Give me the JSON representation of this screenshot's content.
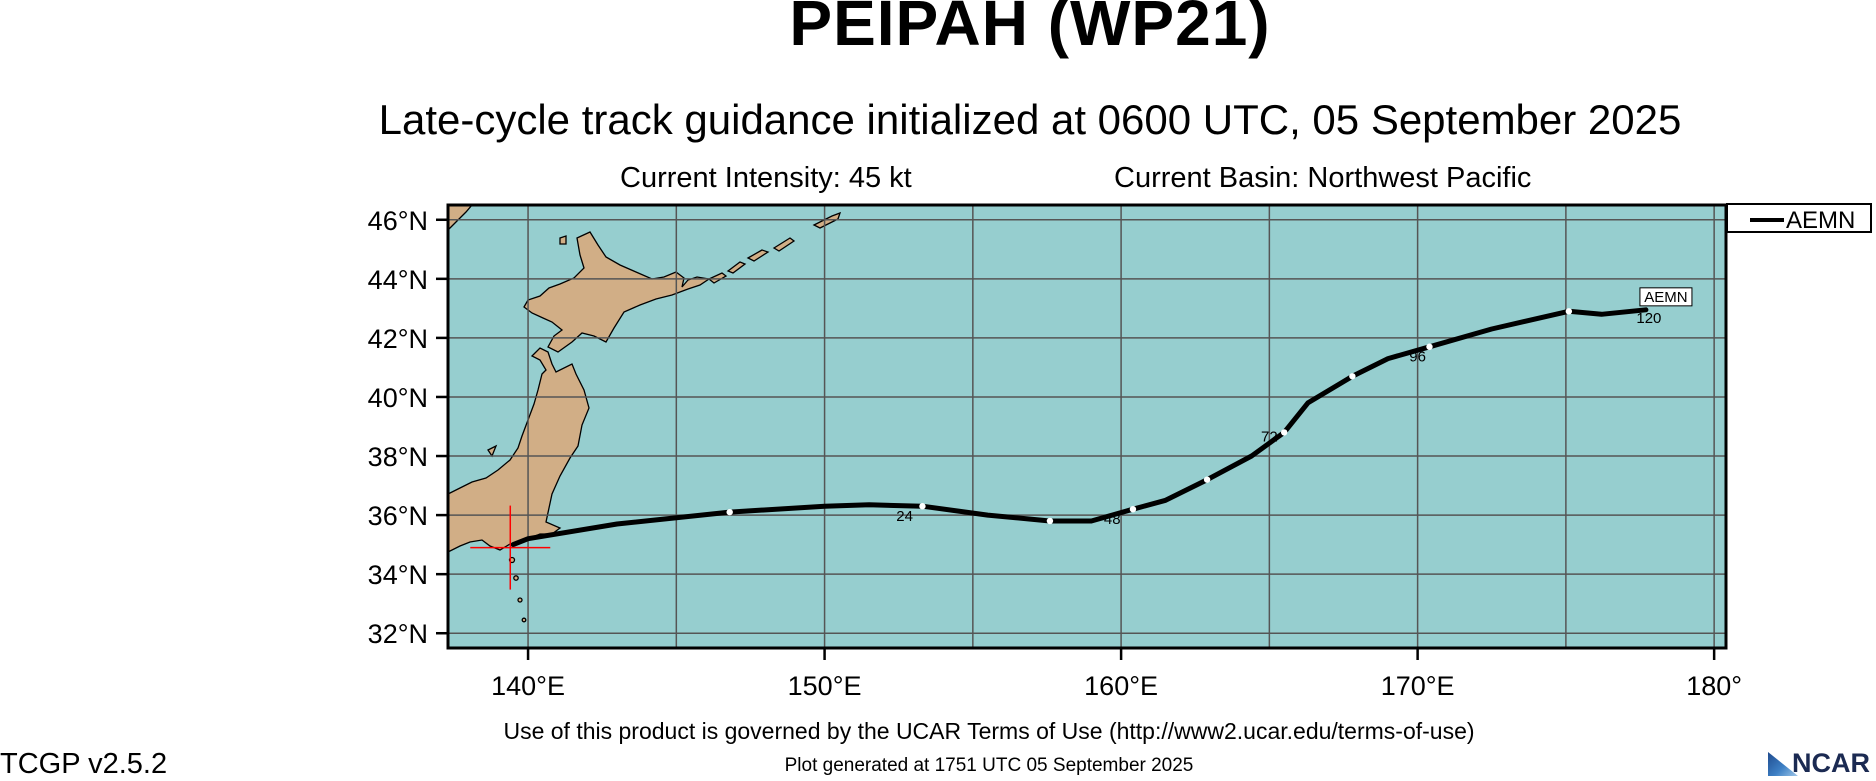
{
  "header": {
    "title": "PEIPAH (WP21)",
    "subtitle": "Late-cycle track guidance initialized at 0600 UTC, 05 September 2025",
    "intensity": "Current Intensity: 45 kt",
    "basin": "Current Basin: Northwest Pacific"
  },
  "legend": {
    "label": "AEMN"
  },
  "map": {
    "lon_range": [
      137.3,
      180.4
    ],
    "lat_range": [
      31.5,
      46.5
    ],
    "grid_lons": [
      140,
      145,
      150,
      155,
      160,
      165,
      170,
      175,
      180
    ],
    "grid_lats": [
      32,
      34,
      36,
      38,
      40,
      42,
      44,
      46
    ],
    "x_ticks": [
      {
        "lon": 140,
        "label": "140°E"
      },
      {
        "lon": 150,
        "label": "150°E"
      },
      {
        "lon": 160,
        "label": "160°E"
      },
      {
        "lon": 170,
        "label": "170°E"
      },
      {
        "lon": 180,
        "label": "180°"
      }
    ],
    "y_ticks": [
      {
        "lat": 46,
        "label": "46°N"
      },
      {
        "lat": 44,
        "label": "44°N"
      },
      {
        "lat": 42,
        "label": "42°N"
      },
      {
        "lat": 40,
        "label": "40°N"
      },
      {
        "lat": 38,
        "label": "38°N"
      },
      {
        "lat": 36,
        "label": "36°N"
      },
      {
        "lat": 34,
        "label": "34°N"
      },
      {
        "lat": 32,
        "label": "32°N"
      }
    ],
    "colors": {
      "ocean": "#96cecf",
      "land": "#d1ae86",
      "grid": "#555555",
      "track": "#000000",
      "current_position": "#ff0000"
    },
    "current_position": {
      "lon": 139.4,
      "lat": 34.9
    },
    "track": {
      "model": "AEMN",
      "points": [
        [
          139.5,
          35.0
        ],
        [
          140.0,
          35.2
        ],
        [
          143.0,
          35.7
        ],
        [
          146.8,
          36.1
        ],
        [
          150.0,
          36.3
        ],
        [
          151.5,
          36.35
        ],
        [
          153.3,
          36.3
        ],
        [
          155.5,
          36.0
        ],
        [
          157.6,
          35.8
        ],
        [
          159.0,
          35.8
        ],
        [
          160.4,
          36.2
        ],
        [
          161.5,
          36.5
        ],
        [
          162.9,
          37.2
        ],
        [
          164.4,
          38.0
        ],
        [
          165.5,
          38.8
        ],
        [
          166.3,
          39.8
        ],
        [
          167.8,
          40.7
        ],
        [
          169.0,
          41.3
        ],
        [
          170.4,
          41.7
        ],
        [
          172.5,
          42.3
        ],
        [
          175.1,
          42.9
        ],
        [
          176.2,
          42.8
        ],
        [
          177.7,
          42.95
        ]
      ],
      "six_hour_markers": [
        [
          146.8,
          36.1
        ],
        [
          153.3,
          36.3
        ],
        [
          157.6,
          35.8
        ],
        [
          160.4,
          36.2
        ],
        [
          162.9,
          37.2
        ],
        [
          165.5,
          38.8
        ],
        [
          167.8,
          40.7
        ],
        [
          170.4,
          41.7
        ],
        [
          175.1,
          42.9
        ]
      ],
      "hour_labels": [
        {
          "label": "24",
          "lon": 152.7,
          "lat": 36.0
        },
        {
          "label": "48",
          "lon": 159.7,
          "lat": 35.9
        },
        {
          "label": "72",
          "lon": 165.0,
          "lat": 38.7
        },
        {
          "label": "96",
          "lon": 170.0,
          "lat": 41.4
        },
        {
          "label": "120",
          "lon": 177.8,
          "lat": 42.7
        }
      ],
      "end_label": "AEMN"
    }
  },
  "footer": {
    "terms": "Use of this product is governed by the UCAR Terms of Use (http://www2.ucar.edu/terms-of-use)",
    "plot_generated": "Plot generated at 1751 UTC   05 September 2025",
    "version": "TCGP v2.5.2",
    "logo_text": "NCAR"
  }
}
